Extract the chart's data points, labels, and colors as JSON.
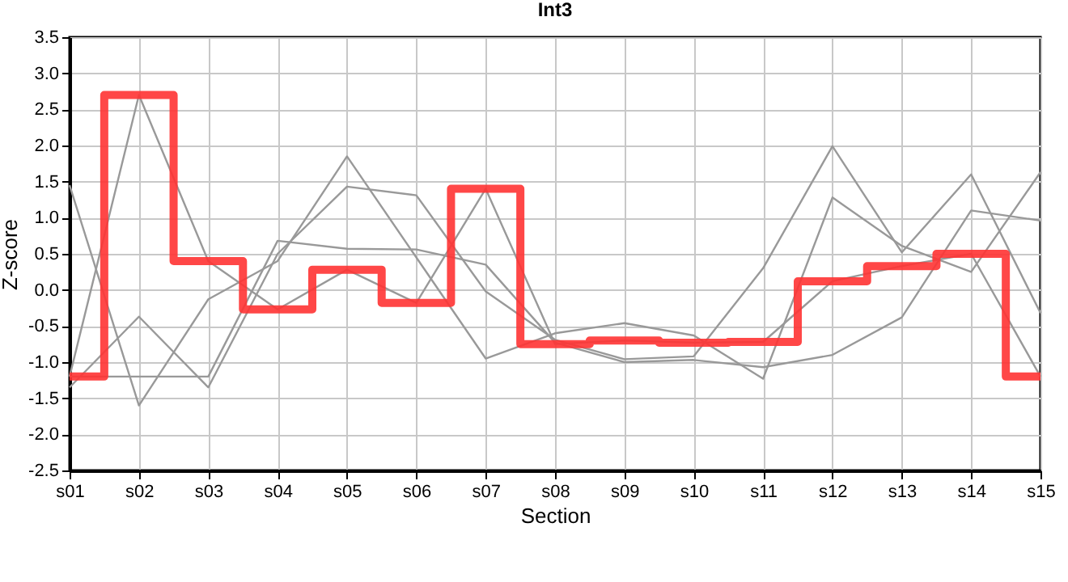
{
  "chart_data": {
    "type": "line",
    "title": "Int3",
    "xlabel": "Section",
    "ylabel": "Z-score",
    "categories": [
      "s01",
      "s02",
      "s03",
      "s04",
      "s05",
      "s06",
      "s07",
      "s08",
      "s09",
      "s10",
      "s11",
      "s12",
      "s13",
      "s14",
      "s15"
    ],
    "series": [
      {
        "type": "line",
        "color": "#999999",
        "values": [
          1.45,
          -1.6,
          -0.13,
          0.4,
          1.85,
          0.45,
          -0.95,
          -0.6,
          -0.46,
          -0.63,
          -1.23,
          1.28,
          0.61,
          0.25,
          1.63
        ]
      },
      {
        "type": "line",
        "color": "#999999",
        "values": [
          -1.35,
          -0.37,
          -1.35,
          0.5,
          1.43,
          1.31,
          -0.02,
          -0.69,
          -0.96,
          -0.92,
          0.3,
          1.99,
          0.52,
          1.6,
          -0.32
        ]
      },
      {
        "type": "line",
        "color": "#999999",
        "values": [
          -1.2,
          -1.2,
          -1.2,
          0.68,
          0.57,
          0.56,
          0.35,
          -0.73,
          -1.0,
          -0.97,
          -1.07,
          -0.9,
          -0.38,
          1.1,
          0.96
        ]
      },
      {
        "type": "line",
        "color": "#999999",
        "values": [
          -1.2,
          2.7,
          0.4,
          -0.27,
          0.28,
          -0.18,
          1.4,
          -0.75,
          -0.7,
          -0.73,
          -0.72,
          0.12,
          0.33,
          0.5,
          -1.2
        ]
      },
      {
        "type": "step",
        "color": "#ff3333",
        "values": [
          -1.2,
          2.7,
          0.4,
          -0.27,
          0.28,
          -0.18,
          1.4,
          -0.75,
          -0.7,
          -0.73,
          -0.72,
          0.12,
          0.33,
          0.5,
          -1.2
        ]
      }
    ],
    "ylim": [
      -2.5,
      3.5
    ],
    "yticks": [
      {
        "value": -2.5,
        "label": "-2.5"
      },
      {
        "value": -2,
        "label": "-2.0"
      },
      {
        "value": -1.5,
        "label": "-1.5"
      },
      {
        "value": -1,
        "label": "-1.0"
      },
      {
        "value": -0.5,
        "label": "-0.5"
      },
      {
        "value": 0,
        "label": "0.0"
      },
      {
        "value": 0.5,
        "label": "0.5"
      },
      {
        "value": 1,
        "label": "1.0"
      },
      {
        "value": 1.5,
        "label": "1.5"
      },
      {
        "value": 2,
        "label": "2.0"
      },
      {
        "value": 2.5,
        "label": "2.5"
      },
      {
        "value": 3,
        "label": "3.0"
      },
      {
        "value": 3.5,
        "label": "3.5"
      }
    ],
    "grid": true
  }
}
